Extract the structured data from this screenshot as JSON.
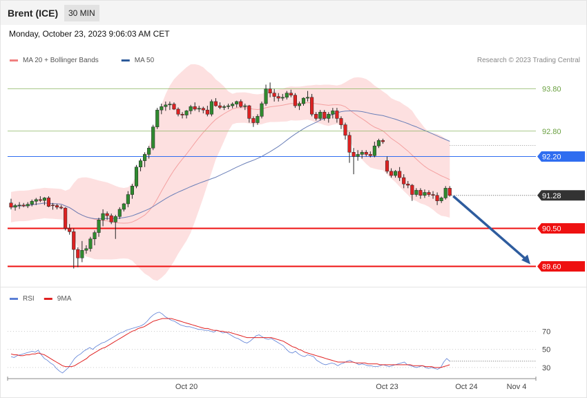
{
  "header": {
    "instrument": "Brent (ICE)",
    "timeframe": "30 MIN"
  },
  "datetime": "Monday, October 23, 2023 9:06:03 AM CET",
  "copyright": "Research © 2023 Trading Central",
  "legend_top": [
    {
      "label": "MA 20 + Bollinger Bands",
      "color": "#f08080"
    },
    {
      "label": "MA 50",
      "color": "#2d5a9a"
    }
  ],
  "legend_bottom": [
    {
      "label": "RSI",
      "color": "#5b7fd6"
    },
    {
      "label": "9MA",
      "color": "#e02020"
    }
  ],
  "chart_data": [
    {
      "type": "candlestick",
      "ylim": [
        89.2,
        94.3
      ],
      "levels": [
        {
          "value": 93.8,
          "label": "93.80",
          "style": "green-line",
          "color": "#8bb560"
        },
        {
          "value": 92.8,
          "label": "92.80",
          "style": "green-line",
          "color": "#8bb560"
        },
        {
          "value": 92.2,
          "label": "92.20",
          "style": "blue-line",
          "color": "#2f6df0"
        },
        {
          "value": 91.28,
          "label": "91.28",
          "style": "current",
          "color": "#333333"
        },
        {
          "value": 90.5,
          "label": "90.50",
          "style": "red-line",
          "color": "#ee1111"
        },
        {
          "value": 89.6,
          "label": "89.60",
          "style": "red-line",
          "color": "#ee1111"
        }
      ],
      "x_ticks": [
        {
          "label": "Oct 20",
          "i": 42
        },
        {
          "label": "Oct 23",
          "i": 90
        },
        {
          "label": "Oct 24",
          "i": 109
        },
        {
          "label": "Nov 4",
          "i": 121
        }
      ],
      "candles": [
        [
          91.1,
          91.2,
          90.95,
          91.0
        ],
        [
          91.0,
          91.08,
          90.92,
          91.04
        ],
        [
          91.04,
          91.12,
          90.96,
          91.05
        ],
        [
          91.05,
          91.1,
          91.0,
          91.03
        ],
        [
          91.03,
          91.12,
          90.98,
          91.07
        ],
        [
          91.07,
          91.18,
          91.02,
          91.14
        ],
        [
          91.14,
          91.22,
          91.05,
          91.18
        ],
        [
          91.18,
          91.26,
          91.12,
          91.16
        ],
        [
          91.16,
          91.24,
          91.05,
          91.22
        ],
        [
          91.22,
          91.26,
          91.0,
          91.02
        ],
        [
          91.05,
          91.1,
          90.94,
          91.04
        ],
        [
          91.04,
          91.08,
          90.95,
          91.0
        ],
        [
          91.0,
          91.05,
          90.95,
          90.98
        ],
        [
          90.98,
          91.0,
          90.45,
          90.5
        ],
        [
          90.5,
          90.6,
          90.35,
          90.42
        ],
        [
          90.42,
          90.5,
          89.55,
          90.0
        ],
        [
          90.0,
          90.05,
          89.58,
          89.8
        ],
        [
          89.8,
          90.2,
          89.7,
          89.98
        ],
        [
          89.98,
          90.1,
          89.9,
          90.02
        ],
        [
          90.02,
          90.3,
          89.95,
          90.25
        ],
        [
          90.25,
          90.45,
          90.1,
          90.4
        ],
        [
          90.4,
          90.75,
          90.3,
          90.7
        ],
        [
          90.7,
          90.95,
          90.55,
          90.85
        ],
        [
          90.85,
          90.9,
          90.7,
          90.8
        ],
        [
          90.8,
          90.85,
          90.6,
          90.65
        ],
        [
          90.65,
          90.82,
          90.25,
          90.78
        ],
        [
          90.78,
          91.0,
          90.72,
          90.95
        ],
        [
          90.95,
          91.1,
          90.9,
          91.08
        ],
        [
          91.08,
          91.38,
          91.0,
          91.3
        ],
        [
          91.3,
          91.55,
          91.2,
          91.5
        ],
        [
          91.5,
          92.0,
          91.45,
          91.95
        ],
        [
          91.95,
          92.15,
          91.85,
          92.1
        ],
        [
          92.1,
          92.3,
          91.95,
          92.25
        ],
        [
          92.25,
          92.45,
          92.15,
          92.4
        ],
        [
          92.4,
          92.95,
          92.35,
          92.9
        ],
        [
          92.9,
          93.35,
          92.85,
          93.3
        ],
        [
          93.3,
          93.45,
          93.2,
          93.38
        ],
        [
          93.38,
          93.5,
          93.28,
          93.42
        ],
        [
          93.42,
          93.5,
          93.3,
          93.44
        ],
        [
          93.44,
          93.48,
          93.3,
          93.32
        ],
        [
          93.32,
          93.36,
          93.15,
          93.2
        ],
        [
          93.2,
          93.25,
          93.1,
          93.18
        ],
        [
          93.18,
          93.3,
          93.1,
          93.28
        ],
        [
          93.28,
          93.42,
          93.2,
          93.38
        ],
        [
          93.38,
          93.48,
          93.28,
          93.32
        ],
        [
          93.32,
          93.4,
          93.25,
          93.34
        ],
        [
          93.34,
          93.38,
          93.22,
          93.3
        ],
        [
          93.3,
          93.4,
          93.15,
          93.2
        ],
        [
          93.2,
          93.55,
          93.15,
          93.5
        ],
        [
          93.5,
          93.58,
          93.38,
          93.4
        ],
        [
          93.4,
          93.48,
          93.32,
          93.36
        ],
        [
          93.36,
          93.42,
          93.3,
          93.38
        ],
        [
          93.38,
          93.45,
          93.32,
          93.4
        ],
        [
          93.4,
          93.48,
          93.34,
          93.44
        ],
        [
          93.44,
          93.52,
          93.36,
          93.5
        ],
        [
          93.5,
          93.55,
          93.35,
          93.38
        ],
        [
          93.38,
          93.45,
          93.3,
          93.4
        ],
        [
          93.4,
          93.42,
          93.0,
          93.1
        ],
        [
          93.1,
          93.15,
          92.9,
          93.0
        ],
        [
          93.0,
          93.2,
          92.95,
          93.15
        ],
        [
          93.15,
          93.5,
          93.1,
          93.45
        ],
        [
          93.45,
          93.9,
          93.4,
          93.8
        ],
        [
          93.8,
          93.95,
          93.6,
          93.7
        ],
        [
          93.7,
          93.8,
          93.5,
          93.62
        ],
        [
          93.62,
          93.7,
          93.5,
          93.58
        ],
        [
          93.58,
          93.68,
          93.52,
          93.6
        ],
        [
          93.6,
          93.75,
          93.55,
          93.7
        ],
        [
          93.7,
          93.78,
          93.6,
          93.65
        ],
        [
          93.65,
          93.7,
          93.35,
          93.4
        ],
        [
          93.4,
          93.5,
          93.3,
          93.45
        ],
        [
          93.45,
          93.6,
          93.4,
          93.58
        ],
        [
          93.58,
          93.75,
          93.5,
          93.6
        ],
        [
          93.6,
          93.68,
          93.15,
          93.2
        ],
        [
          93.2,
          93.25,
          93.05,
          93.1
        ],
        [
          93.1,
          93.3,
          93.05,
          93.25
        ],
        [
          93.25,
          93.3,
          93.05,
          93.1
        ],
        [
          93.1,
          93.25,
          93.0,
          93.2
        ],
        [
          93.2,
          93.35,
          93.1,
          93.28
        ],
        [
          93.28,
          93.35,
          93.0,
          93.1
        ],
        [
          93.1,
          93.15,
          92.85,
          92.95
        ],
        [
          92.95,
          93.0,
          92.6,
          92.7
        ],
        [
          92.7,
          92.78,
          92.05,
          92.3
        ],
        [
          92.3,
          92.4,
          91.78,
          92.2
        ],
        [
          92.2,
          92.35,
          92.1,
          92.25
        ],
        [
          92.25,
          92.35,
          92.15,
          92.3
        ],
        [
          92.3,
          92.35,
          92.2,
          92.25
        ],
        [
          92.25,
          92.32,
          92.18,
          92.22
        ],
        [
          92.22,
          92.55,
          92.18,
          92.45
        ],
        [
          92.45,
          92.62,
          92.4,
          92.58
        ],
        [
          92.58,
          92.62,
          92.5,
          92.55
        ],
        [
          92.1,
          92.2,
          91.8,
          91.85
        ],
        [
          91.85,
          91.92,
          91.7,
          91.75
        ],
        [
          91.75,
          91.88,
          91.7,
          91.85
        ],
        [
          91.85,
          91.95,
          91.62,
          91.7
        ],
        [
          91.7,
          91.78,
          91.45,
          91.55
        ],
        [
          91.55,
          91.62,
          91.45,
          91.52
        ],
        [
          91.52,
          91.55,
          91.15,
          91.3
        ],
        [
          91.3,
          91.45,
          91.25,
          91.4
        ],
        [
          91.4,
          91.45,
          91.2,
          91.28
        ],
        [
          91.28,
          91.42,
          91.22,
          91.35
        ],
        [
          91.35,
          91.4,
          91.25,
          91.3
        ],
        [
          91.3,
          91.38,
          91.2,
          91.28
        ],
        [
          91.28,
          91.35,
          91.05,
          91.15
        ],
        [
          91.15,
          91.25,
          91.1,
          91.22
        ],
        [
          91.22,
          91.5,
          91.18,
          91.45
        ],
        [
          91.45,
          91.5,
          91.25,
          91.28
        ]
      ],
      "forecast": {
        "from": 91.28,
        "to": 89.6
      }
    },
    {
      "type": "line",
      "name": "RSI",
      "ylim": [
        20,
        100
      ],
      "y_ticks": [
        70,
        50,
        30
      ],
      "series": [
        {
          "name": "RSI",
          "color": "#5b7fd6",
          "values": [
            42,
            41,
            43,
            44,
            45,
            46,
            47,
            48,
            47,
            49,
            44,
            40,
            38,
            35,
            33,
            29,
            26,
            24,
            27,
            30,
            35,
            40,
            43,
            45,
            48,
            50,
            52,
            50,
            53,
            55,
            57,
            58,
            60,
            62,
            64,
            66,
            68,
            69,
            71,
            72,
            73,
            74,
            75,
            76,
            78,
            81,
            85,
            88,
            90,
            91,
            89,
            86,
            84,
            82,
            81,
            79,
            77,
            76,
            75,
            75,
            74,
            73,
            72,
            72,
            71,
            71,
            70,
            69,
            71,
            70,
            68,
            69,
            67,
            65,
            63,
            62,
            60,
            58,
            57,
            59,
            62,
            65,
            66,
            64,
            62,
            61,
            62,
            60,
            58,
            56,
            54,
            50,
            47,
            46,
            48,
            45,
            43,
            42,
            44,
            43,
            42,
            38,
            36,
            34,
            33,
            34,
            35,
            34,
            32,
            34,
            35,
            37,
            38,
            36,
            35,
            33,
            34,
            33,
            32,
            32,
            31,
            31,
            32,
            33,
            32,
            31,
            32,
            33,
            34,
            35,
            36,
            33,
            32,
            31,
            30,
            31,
            32,
            30,
            29,
            30,
            29,
            28,
            30,
            36,
            40,
            37
          ]
        },
        {
          "name": "9MA",
          "color": "#e02020",
          "values": [
            45,
            44,
            44,
            43,
            43,
            44,
            44,
            45,
            45,
            46,
            45,
            44,
            42,
            40,
            38,
            36,
            34,
            32,
            31,
            31,
            31,
            32,
            34,
            36,
            38,
            40,
            43,
            45,
            47,
            49,
            51,
            52,
            54,
            56,
            58,
            60,
            62,
            64,
            66,
            68,
            70,
            71,
            73,
            74,
            75,
            77,
            79,
            81,
            82,
            83,
            84,
            84,
            84,
            84,
            83,
            82,
            81,
            80,
            79,
            78,
            77,
            76,
            75,
            74,
            73,
            73,
            72,
            71,
            71,
            70,
            70,
            69,
            69,
            68,
            67,
            66,
            65,
            64,
            63,
            63,
            63,
            63,
            63,
            63,
            63,
            63,
            63,
            62,
            61,
            60,
            59,
            57,
            55,
            53,
            52,
            50,
            49,
            47,
            46,
            45,
            44,
            43,
            42,
            41,
            40,
            39,
            38,
            37,
            36,
            36,
            36,
            36,
            36,
            36,
            35,
            35,
            35,
            35,
            34,
            34,
            34,
            34,
            33,
            33,
            33,
            33,
            33,
            33,
            33,
            33,
            33,
            33,
            33,
            32,
            32,
            32,
            32,
            31,
            31,
            31,
            30,
            30,
            30,
            31,
            32,
            33
          ]
        }
      ]
    }
  ]
}
